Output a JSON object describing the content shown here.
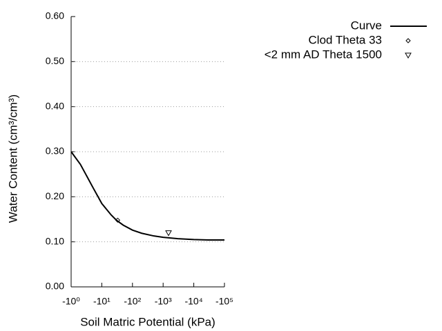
{
  "chart_data": {
    "type": "line",
    "xlabel": "Soil Matric Potential (kPa)",
    "ylabel": "Water Content (cm³/cm³)",
    "xscale": "log",
    "xlim": [
      1,
      100000
    ],
    "xticks": [
      {
        "value": 1,
        "label": "-10⁰"
      },
      {
        "value": 10,
        "label": "-10¹"
      },
      {
        "value": 100,
        "label": "-10²"
      },
      {
        "value": 1000,
        "label": "-10³"
      },
      {
        "value": 10000,
        "label": "-10⁴"
      },
      {
        "value": 100000,
        "label": "-10⁵"
      }
    ],
    "ylim": [
      0,
      0.6
    ],
    "yticks": [
      {
        "value": 0,
        "label": "0.00"
      },
      {
        "value": 0.1,
        "label": "0.10"
      },
      {
        "value": 0.2,
        "label": "0.20"
      },
      {
        "value": 0.3,
        "label": "0.30"
      },
      {
        "value": 0.4,
        "label": "0.40"
      },
      {
        "value": 0.5,
        "label": "0.50"
      },
      {
        "value": 0.6,
        "label": "0.60"
      }
    ],
    "grid": true,
    "legend": "top-right",
    "series": [
      {
        "name": "Curve",
        "style": "line",
        "color": "#000000",
        "x": [
          1,
          2,
          3,
          5,
          10,
          20,
          30,
          50,
          100,
          200,
          500,
          1000,
          3000,
          10000,
          30000,
          100000
        ],
        "values": [
          0.3,
          0.272,
          0.25,
          0.222,
          0.185,
          0.16,
          0.148,
          0.137,
          0.126,
          0.119,
          0.113,
          0.11,
          0.107,
          0.105,
          0.104,
          0.104
        ]
      },
      {
        "name": "Clod Theta 33",
        "style": "diamond",
        "color": "#000000",
        "x": [
          33
        ],
        "values": [
          0.148
        ]
      },
      {
        "name": "<2 mm AD Theta 1500",
        "style": "triangle",
        "color": "#000000",
        "x": [
          1500
        ],
        "values": [
          0.12
        ]
      }
    ]
  }
}
